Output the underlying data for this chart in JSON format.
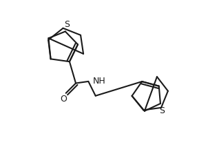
{
  "bg_color": "#ffffff",
  "line_color": "#1a1a1a",
  "line_width": 1.5,
  "font_size_label": 8.5,
  "font_family": "DejaVu Sans",
  "xlim": [
    0.0,
    1.0
  ],
  "ylim": [
    0.0,
    1.0
  ],
  "figsize": [
    3.18,
    2.1
  ],
  "dpi": 100
}
